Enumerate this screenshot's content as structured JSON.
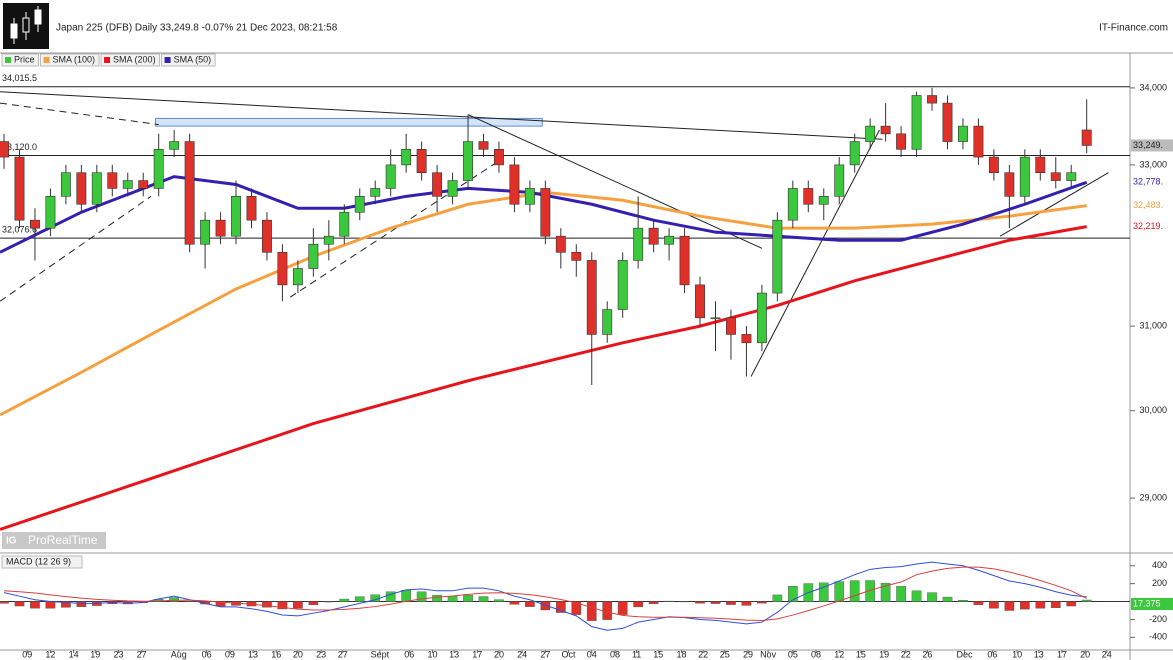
{
  "header": {
    "title": "Japan 225 (DFB) Daily 33,249.8 -0.07% 21 Dec 2023, 08:21:58",
    "source": "IT-Finance.com",
    "watermark": "ProRealTime",
    "logo": "IG"
  },
  "chart_data": [
    {
      "type": "candlestick",
      "legend_name": "Price",
      "log_scale": true,
      "up_color": "#3cc83c",
      "down_color": "#e0302a",
      "xlim": [
        -0.26,
        72.8
      ],
      "ylim": [
        28400,
        34450
      ],
      "yticks": [
        {
          "value": 34000,
          "label": "34,000"
        },
        {
          "value": 33000,
          "label": "33,000"
        },
        {
          "value": 31000,
          "label": "31,000"
        },
        {
          "value": 30000,
          "label": "30,000"
        },
        {
          "value": 29000,
          "label": "29,000"
        }
      ],
      "xticks": [
        {
          "value": 1.5,
          "label": "09"
        },
        {
          "value": 3,
          "label": "12"
        },
        {
          "value": 4.5,
          "label": "14"
        },
        {
          "value": 5.9,
          "label": "19"
        },
        {
          "value": 7.4,
          "label": "23"
        },
        {
          "value": 8.9,
          "label": "27"
        },
        {
          "value": 11.3,
          "label": "Aug"
        },
        {
          "value": 13.1,
          "label": "06"
        },
        {
          "value": 14.6,
          "label": "09"
        },
        {
          "value": 16.1,
          "label": "13"
        },
        {
          "value": 17.6,
          "label": "16"
        },
        {
          "value": 19,
          "label": "20"
        },
        {
          "value": 20.5,
          "label": "23"
        },
        {
          "value": 21.9,
          "label": "27"
        },
        {
          "value": 24.3,
          "label": "Sept"
        },
        {
          "value": 26.2,
          "label": "06"
        },
        {
          "value": 27.7,
          "label": "10"
        },
        {
          "value": 29.1,
          "label": "13"
        },
        {
          "value": 30.6,
          "label": "17"
        },
        {
          "value": 32,
          "label": "20"
        },
        {
          "value": 33.5,
          "label": "24"
        },
        {
          "value": 35,
          "label": "27"
        },
        {
          "value": 36.5,
          "label": "Oct"
        },
        {
          "value": 38,
          "label": "04"
        },
        {
          "value": 39.5,
          "label": "08"
        },
        {
          "value": 40.9,
          "label": "11"
        },
        {
          "value": 42.3,
          "label": "15"
        },
        {
          "value": 43.8,
          "label": "18"
        },
        {
          "value": 45.2,
          "label": "22"
        },
        {
          "value": 46.6,
          "label": "25"
        },
        {
          "value": 48.1,
          "label": "29"
        },
        {
          "value": 49.4,
          "label": "Nov"
        },
        {
          "value": 51,
          "label": "05"
        },
        {
          "value": 52.5,
          "label": "08"
        },
        {
          "value": 54,
          "label": "12"
        },
        {
          "value": 55.4,
          "label": "15"
        },
        {
          "value": 56.9,
          "label": "19"
        },
        {
          "value": 58.3,
          "label": "22"
        },
        {
          "value": 59.7,
          "label": "26"
        },
        {
          "value": 62.1,
          "label": "Dec"
        },
        {
          "value": 63.9,
          "label": "06"
        },
        {
          "value": 65.5,
          "label": "10"
        },
        {
          "value": 66.9,
          "label": "13"
        },
        {
          "value": 68.4,
          "label": "17"
        },
        {
          "value": 69.9,
          "label": "20"
        },
        {
          "value": 71.3,
          "label": "24"
        }
      ],
      "candles": [
        [
          33300,
          33400,
          32950,
          33100
        ],
        [
          33100,
          33200,
          32200,
          32300
        ],
        [
          32300,
          32450,
          31800,
          32200
        ],
        [
          32200,
          32700,
          32100,
          32600
        ],
        [
          32600,
          33000,
          32500,
          32900
        ],
        [
          32900,
          33000,
          32400,
          32500
        ],
        [
          32500,
          33000,
          32400,
          32900
        ],
        [
          32900,
          33000,
          32600,
          32700
        ],
        [
          32700,
          32900,
          32600,
          32800
        ],
        [
          32800,
          32900,
          32600,
          32700
        ],
        [
          32700,
          33400,
          32600,
          33200
        ],
        [
          33200,
          33450,
          33100,
          33300
        ],
        [
          33300,
          33400,
          31900,
          32000
        ],
        [
          32000,
          32400,
          31700,
          32300
        ],
        [
          32300,
          32400,
          32000,
          32100
        ],
        [
          32100,
          32800,
          32000,
          32600
        ],
        [
          32600,
          32700,
          32200,
          32300
        ],
        [
          32300,
          32400,
          31800,
          31900
        ],
        [
          31900,
          32000,
          31300,
          31500
        ],
        [
          31500,
          31800,
          31400,
          31700
        ],
        [
          31700,
          32200,
          31600,
          32000
        ],
        [
          32000,
          32300,
          31800,
          32100
        ],
        [
          32100,
          32500,
          32000,
          32400
        ],
        [
          32400,
          32700,
          32300,
          32600
        ],
        [
          32600,
          32800,
          32500,
          32700
        ],
        [
          32700,
          33200,
          32600,
          33000
        ],
        [
          33000,
          33400,
          32900,
          33200
        ],
        [
          33200,
          33300,
          32800,
          32900
        ],
        [
          32900,
          33000,
          32400,
          32600
        ],
        [
          32600,
          32900,
          32500,
          32800
        ],
        [
          32800,
          33650,
          32700,
          33300
        ],
        [
          33300,
          33400,
          33100,
          33200
        ],
        [
          33200,
          33300,
          32900,
          33000
        ],
        [
          33000,
          33100,
          32400,
          32500
        ],
        [
          32500,
          32800,
          32400,
          32700
        ],
        [
          32700,
          32800,
          32000,
          32100
        ],
        [
          32100,
          32200,
          31700,
          31900
        ],
        [
          31900,
          32000,
          31600,
          31800
        ],
        [
          31800,
          31900,
          30300,
          30900
        ],
        [
          30900,
          31300,
          30800,
          31200
        ],
        [
          31200,
          31900,
          31100,
          31800
        ],
        [
          31800,
          32600,
          31700,
          32200
        ],
        [
          32200,
          32300,
          31900,
          32000
        ],
        [
          32000,
          32200,
          31800,
          32100
        ],
        [
          32100,
          32200,
          31400,
          31500
        ],
        [
          31500,
          31600,
          31000,
          31100
        ],
        [
          31100,
          31300,
          30700,
          31100
        ],
        [
          31100,
          31200,
          30600,
          30900
        ],
        [
          30900,
          31000,
          30400,
          30800
        ],
        [
          30800,
          31500,
          30700,
          31400
        ],
        [
          31400,
          32400,
          31300,
          32300
        ],
        [
          32300,
          32800,
          32200,
          32700
        ],
        [
          32700,
          32800,
          32400,
          32500
        ],
        [
          32500,
          32700,
          32300,
          32600
        ],
        [
          32600,
          33100,
          32500,
          33000
        ],
        [
          33000,
          33400,
          32900,
          33300
        ],
        [
          33300,
          33600,
          33200,
          33500
        ],
        [
          33500,
          33800,
          33300,
          33400
        ],
        [
          33400,
          33500,
          33100,
          33200
        ],
        [
          33200,
          33950,
          33100,
          33900
        ],
        [
          33900,
          34000,
          33700,
          33800
        ],
        [
          33800,
          33900,
          33200,
          33300
        ],
        [
          33300,
          33600,
          33200,
          33500
        ],
        [
          33500,
          33600,
          33000,
          33100
        ],
        [
          33100,
          33200,
          32800,
          32900
        ],
        [
          32900,
          33000,
          32200,
          32600
        ],
        [
          32600,
          33200,
          32500,
          33100
        ],
        [
          33100,
          33200,
          32800,
          32900
        ],
        [
          32900,
          33100,
          32700,
          32800
        ],
        [
          32800,
          33000,
          32700,
          32900
        ],
        [
          33450,
          33850,
          33150,
          33249.8
        ]
      ],
      "last_label": "33,249.",
      "series": [
        {
          "name": "SMA (100)",
          "color": "#f5a140",
          "x": [
            -0.26,
            5,
            10,
            15,
            20,
            25,
            30,
            35,
            40,
            45,
            50,
            55,
            60,
            65,
            70
          ],
          "values": [
            29950,
            30450,
            30950,
            31450,
            31850,
            32200,
            32500,
            32650,
            32550,
            32350,
            32200,
            32200,
            32250,
            32350,
            32483
          ],
          "end_label": "32,483."
        },
        {
          "name": "SMA (200)",
          "color": "#e8141c",
          "x": [
            -0.26,
            10,
            20,
            30,
            40,
            45,
            50,
            55,
            60,
            65,
            70
          ],
          "values": [
            28650,
            29250,
            29850,
            30350,
            30800,
            31000,
            31250,
            31550,
            31800,
            32050,
            32219
          ],
          "end_label": "32,219."
        },
        {
          "name": "SMA (50)",
          "color": "#3320b0",
          "x": [
            -0.26,
            5,
            11,
            15,
            19,
            22,
            26,
            30,
            34,
            38,
            42,
            46,
            50,
            54,
            58,
            62,
            66,
            70
          ],
          "values": [
            31900,
            32400,
            32850,
            32750,
            32450,
            32450,
            32600,
            32700,
            32650,
            32500,
            32300,
            32150,
            32100,
            32050,
            32050,
            32250,
            32500,
            32778
          ],
          "end_label": "32,778."
        }
      ],
      "hlines": [
        {
          "value": 34015.5,
          "label": "34,015.5"
        },
        {
          "value": 33120.0,
          "label": "33,120.0"
        },
        {
          "value": 32076.6,
          "label": "32,076.6"
        }
      ],
      "trendlines": [
        {
          "x": [
            -0.26,
            56.8
          ],
          "y": [
            33950,
            33330
          ],
          "dashed": false
        },
        {
          "x": [
            -0.26,
            10
          ],
          "y": [
            33800,
            33520
          ],
          "dashed": true
        },
        {
          "x": [
            -0.26,
            9.5
          ],
          "y": [
            31300,
            32600
          ],
          "dashed": true
        },
        {
          "x": [
            18.5,
            32
          ],
          "y": [
            31350,
            33050
          ],
          "dashed": true
        },
        {
          "x": [
            30,
            49
          ],
          "y": [
            33650,
            31950
          ],
          "dashed": false
        },
        {
          "x": [
            48.3,
            56.6
          ],
          "y": [
            30400,
            33450
          ],
          "dashed": false
        },
        {
          "x": [
            64.4,
            71.4
          ],
          "y": [
            32100,
            32900
          ],
          "dashed": false
        }
      ],
      "zones": [
        {
          "x": [
            9.8,
            34.8
          ],
          "y": [
            33500,
            33600
          ],
          "color": "#a9c8f0"
        }
      ]
    },
    {
      "type": "macd",
      "title": "MACD (12 26 9)",
      "xlim": [
        -0.26,
        72.8
      ],
      "ylim": [
        -530,
        520
      ],
      "yticks": [
        400,
        200,
        -200,
        -400
      ],
      "histogram": {
        "up_color": "#3cc83c",
        "down_color": "#e0302a",
        "values": [
          -20,
          -50,
          -75,
          -75,
          -65,
          -58,
          -45,
          -25,
          -27,
          -13,
          25,
          45,
          4,
          -28,
          -54,
          -43,
          -50,
          -64,
          -83,
          -75,
          -36,
          -5,
          28,
          55,
          76,
          109,
          127,
          110,
          72,
          58,
          70,
          56,
          21,
          -31,
          -57,
          -94,
          -123,
          -146,
          -213,
          -202,
          -146,
          -60,
          -24,
          5,
          -4,
          -19,
          -23,
          -34,
          -43,
          -18,
          74,
          171,
          201,
          209,
          223,
          234,
          235,
          204,
          172,
          120,
          100,
          50,
          15,
          -35,
          -75,
          -100,
          -85,
          -75,
          -70,
          -50,
          17.375
        ],
        "end_label": "17.375"
      },
      "series": [
        {
          "color": "#3050d8",
          "values": [
            100,
            60,
            20,
            0,
            -10,
            -20,
            -20,
            -10,
            -20,
            -10,
            30,
            60,
            20,
            -20,
            -60,
            -60,
            -80,
            -110,
            -150,
            -160,
            -130,
            -100,
            -60,
            -20,
            20,
            80,
            130,
            140,
            120,
            120,
            150,
            150,
            120,
            60,
            20,
            -40,
            -100,
            -160,
            -280,
            -320,
            -300,
            -230,
            -200,
            -170,
            -180,
            -200,
            -210,
            -230,
            -250,
            -230,
            -120,
            20,
            100,
            160,
            230,
            300,
            360,
            380,
            390,
            420,
            440,
            420,
            400,
            350,
            290,
            230,
            200,
            160,
            110,
            70,
            52
          ]
        },
        {
          "color": "#d84040",
          "values": [
            120,
            110,
            95,
            75,
            55,
            38,
            25,
            15,
            7,
            3,
            5,
            15,
            16,
            8,
            -6,
            -17,
            -30,
            -46,
            -67,
            -85,
            -94,
            -95,
            -88,
            -75,
            -56,
            -29,
            3,
            30,
            48,
            62,
            80,
            94,
            99,
            91,
            77,
            54,
            23,
            -14,
            -67,
            -118,
            -154,
            -170,
            -176,
            -175,
            -176,
            -181,
            -187,
            -196,
            -207,
            -212,
            -194,
            -151,
            -101,
            -49,
            7,
            66,
            125,
            176,
            218,
            300,
            340,
            370,
            385,
            385,
            365,
            330,
            285,
            235,
            180,
            120,
            35
          ]
        }
      ]
    }
  ]
}
